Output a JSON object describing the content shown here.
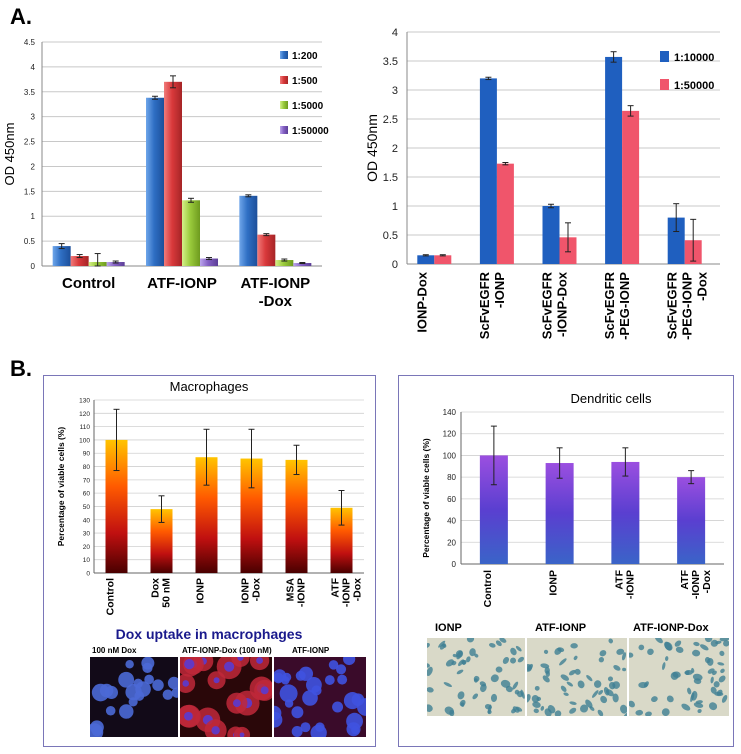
{
  "labels": {
    "panel_a": "A.",
    "panel_b": "B."
  },
  "colors": {
    "blue": "#2f6fc4",
    "red": "#d9393b",
    "green": "#9acb3c",
    "purple": "#8460c4",
    "pink": "#f0556b",
    "grid": "#c8c8c8",
    "bright_blue": "#1f5fbf"
  },
  "chart_data": [
    {
      "id": "atf_ionp_od",
      "type": "bar",
      "title": "",
      "xlabel": "",
      "ylabel": "OD 450nm",
      "ylim": [
        0,
        4.5
      ],
      "yticks": [
        "0",
        "0.5",
        "1",
        "1.5",
        "2",
        "2.5",
        "3",
        "3.5",
        "4",
        "4.5"
      ],
      "categories": [
        "Control",
        "ATF-IONP",
        "ATF-IONP\n-Dox"
      ],
      "series": [
        {
          "name": "1:200",
          "values": [
            0.4,
            3.38,
            1.41
          ],
          "errors": [
            0.05,
            0.03,
            0.02
          ]
        },
        {
          "name": "1:500",
          "values": [
            0.2,
            3.7,
            0.63
          ],
          "errors": [
            0.03,
            0.12,
            0.02
          ]
        },
        {
          "name": "1:5000",
          "values": [
            0.08,
            1.32,
            0.12
          ],
          "errors": [
            0.17,
            0.04,
            0.02
          ]
        },
        {
          "name": "1:50000",
          "values": [
            0.08,
            0.15,
            0.06
          ],
          "errors": [
            0.02,
            0.02,
            0.01
          ]
        }
      ],
      "legend_position": "top-right"
    },
    {
      "id": "scfv_od",
      "type": "bar",
      "title": "",
      "xlabel": "",
      "ylabel": "OD 450nm",
      "ylim": [
        0,
        4
      ],
      "yticks": [
        "0",
        "0.5",
        "1",
        "1.5",
        "2",
        "2.5",
        "3",
        "3.5",
        "4"
      ],
      "categories": [
        "IONP-Dox",
        "ScFvEGFR\n-IONP",
        "ScFvEGFR\n-IONP-Dox",
        "ScFvEGFR\n-PEG-IONP",
        "ScFvEGFR\n-PEG-IONP\n-Dox"
      ],
      "series": [
        {
          "name": "1:10000",
          "values": [
            0.15,
            3.2,
            1.0,
            3.57,
            0.8
          ],
          "errors": [
            0.01,
            0.02,
            0.03,
            0.09,
            0.24
          ]
        },
        {
          "name": "1:50000",
          "values": [
            0.15,
            1.73,
            0.46,
            2.64,
            0.41
          ],
          "errors": [
            0.01,
            0.02,
            0.25,
            0.09,
            0.36
          ]
        }
      ],
      "legend_position": "top-right"
    },
    {
      "id": "macrophages_viability",
      "type": "bar",
      "title": "Macrophages",
      "xlabel": "",
      "ylabel": "Percentage of viable cells (%)",
      "ylim": [
        0,
        130
      ],
      "yticks": [
        "0",
        "10",
        "20",
        "30",
        "40",
        "50",
        "60",
        "70",
        "80",
        "90",
        "100",
        "110",
        "120",
        "130"
      ],
      "categories": [
        "Control",
        "Dox\n50 nM",
        "IONP",
        "IONP\n-Dox",
        "MSA\n-IONP",
        "ATF\n-IONP\n-Dox"
      ],
      "values": [
        100,
        48,
        87,
        86,
        85,
        49
      ],
      "errors": [
        23,
        10,
        21,
        22,
        11,
        13
      ]
    },
    {
      "id": "dendritic_viability",
      "type": "bar",
      "title": "Dendritic cells",
      "xlabel": "",
      "ylabel": "Percentage of viable cells (%)",
      "ylim": [
        0,
        140
      ],
      "yticks": [
        "0",
        "20",
        "40",
        "60",
        "80",
        "100",
        "120",
        "140"
      ],
      "categories": [
        "Control",
        "IONP",
        "ATF\n-IONP",
        "ATF\n-IONP\n-Dox"
      ],
      "values": [
        100,
        93,
        94,
        80
      ],
      "errors": [
        27,
        14,
        13,
        6
      ]
    }
  ],
  "macrophage_panel": {
    "uptake_title": "Dox uptake in macrophages",
    "images": [
      {
        "caption": "100 nM Dox"
      },
      {
        "caption": "ATF-IONP-Dox (100 nM)"
      },
      {
        "caption": "ATF-IONP"
      }
    ]
  },
  "dendritic_panel": {
    "images": [
      {
        "caption": "IONP"
      },
      {
        "caption": "ATF-IONP"
      },
      {
        "caption": "ATF-IONP-Dox"
      }
    ]
  }
}
